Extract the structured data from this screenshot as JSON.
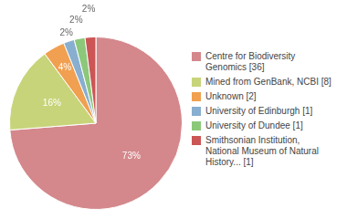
{
  "chart_data": {
    "type": "pie",
    "categories": [
      "Centre for Biodiversity\nGenomics [36]",
      "Mined from GenBank, NCBI [8]",
      "Unknown [2]",
      "University of Edinburgh [1]",
      "University of Dundee [1]",
      "Smithsonian Institution,\nNational Museum of Natural\nHistory... [1]"
    ],
    "values": [
      73,
      16,
      4,
      2,
      2,
      2
    ],
    "value_labels": [
      "73%",
      "16%",
      "4%",
      "2%",
      "2%",
      "2%"
    ],
    "colors": [
      "#d4888c",
      "#c8d47a",
      "#f0a050",
      "#88aed0",
      "#8cc87a",
      "#cc5555"
    ],
    "data_labels": true,
    "legend": "right"
  }
}
